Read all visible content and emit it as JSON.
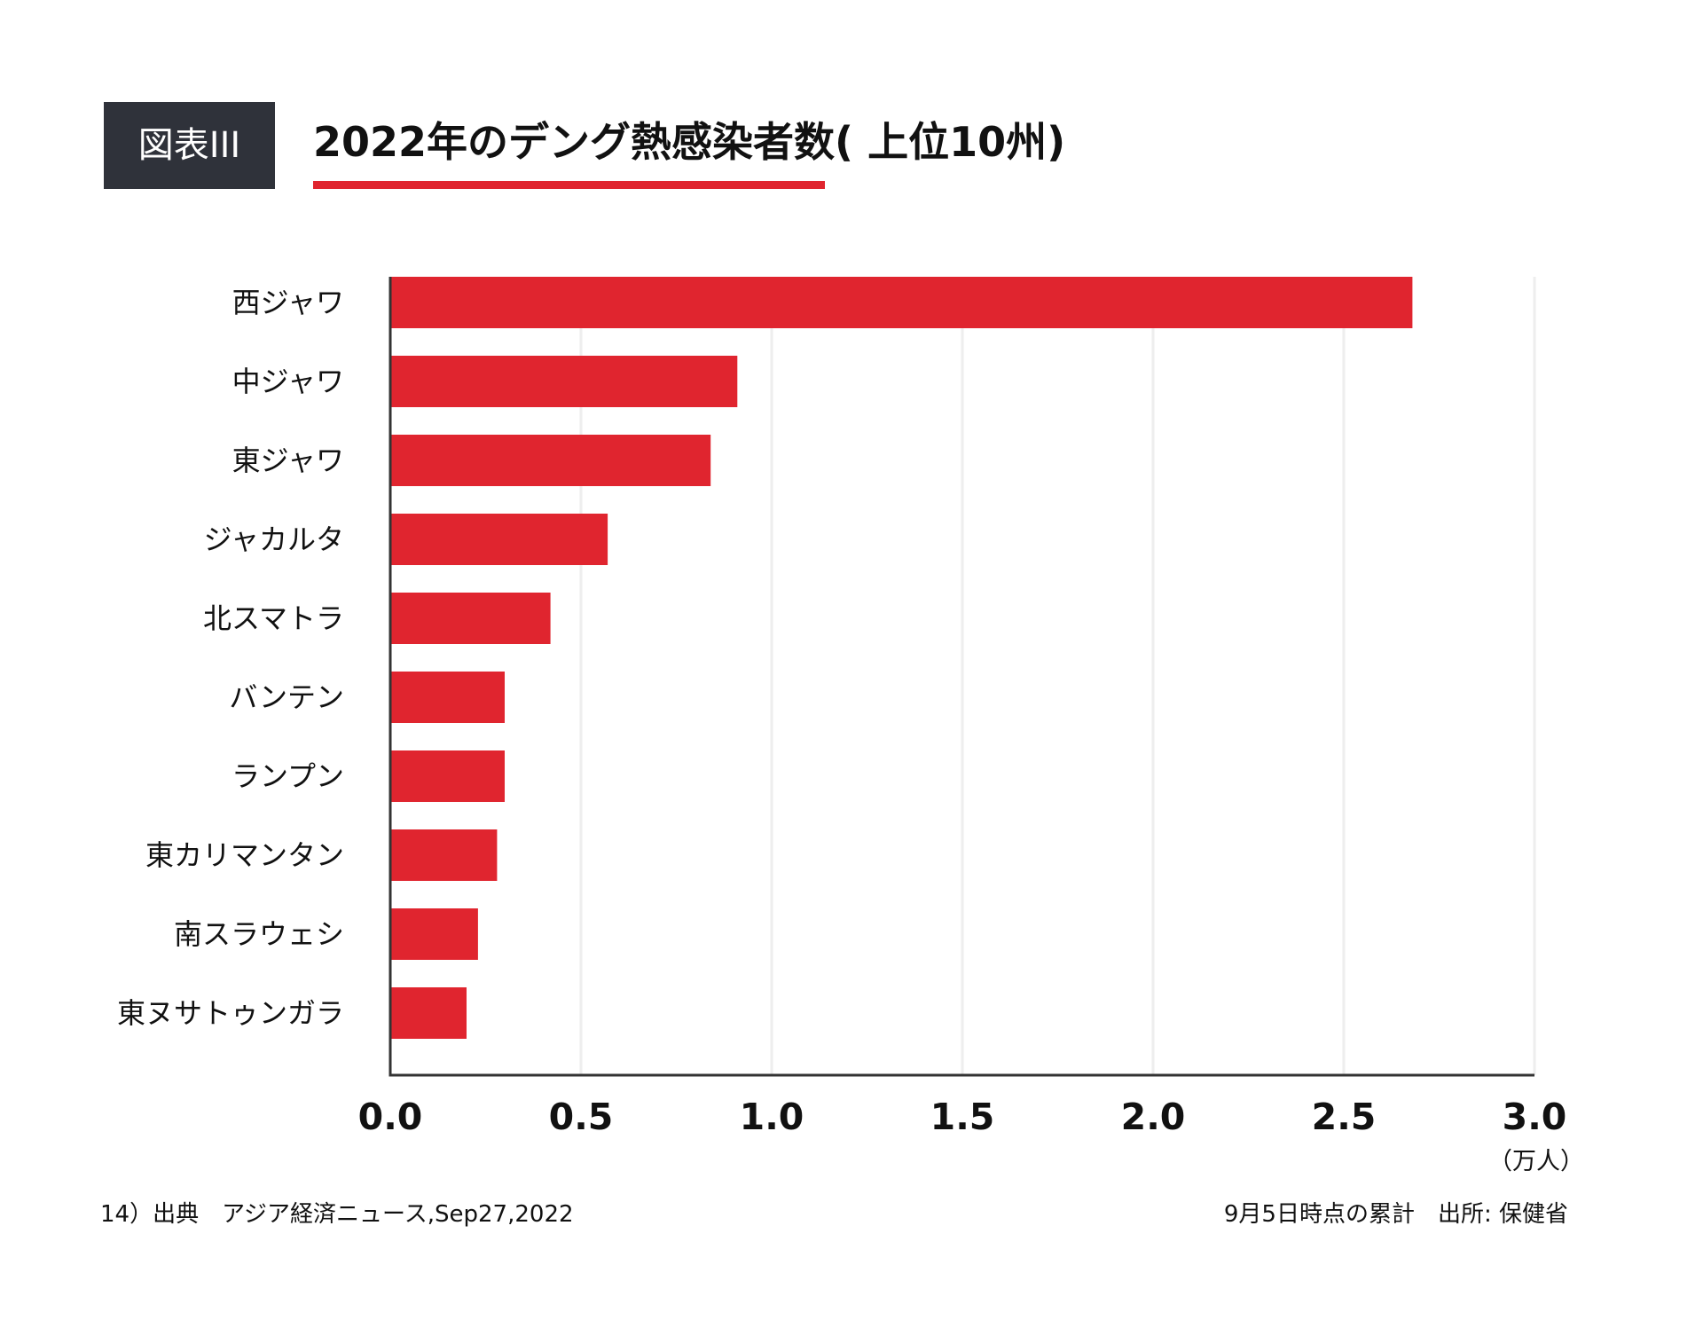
{
  "header": {
    "badge": "図表III",
    "title": "2022年のデング熱感染者数( 上位10州)"
  },
  "colors": {
    "bar": "#e0252f",
    "badge_bg": "#2f323a",
    "underline": "#e0252f",
    "grid": "#eeeeee",
    "axis": "#333333"
  },
  "chart_data": {
    "type": "bar",
    "orientation": "horizontal",
    "title": "2022年のデング熱感染者数( 上位10州)",
    "categories": [
      "西ジャワ",
      "中ジャワ",
      "東ジャワ",
      "ジャカルタ",
      "北スマトラ",
      "バンテン",
      "ランプン",
      "東カリマンタン",
      "南スラウェシ",
      "東ヌサトゥンガラ"
    ],
    "values": [
      2.68,
      0.91,
      0.84,
      0.57,
      0.42,
      0.3,
      0.3,
      0.28,
      0.23,
      0.2
    ],
    "xlim": [
      0,
      3.0
    ],
    "xticks": [
      "0.0",
      "0.5",
      "1.0",
      "1.5",
      "2.0",
      "2.5",
      "3.0"
    ],
    "xlabel": "（万人）",
    "ylabel": "",
    "grid": true
  },
  "footer": {
    "source": "14）出典　アジア経済ニュース,Sep27,2022",
    "note": "9月5日時点の累計　出所: 保健省"
  }
}
